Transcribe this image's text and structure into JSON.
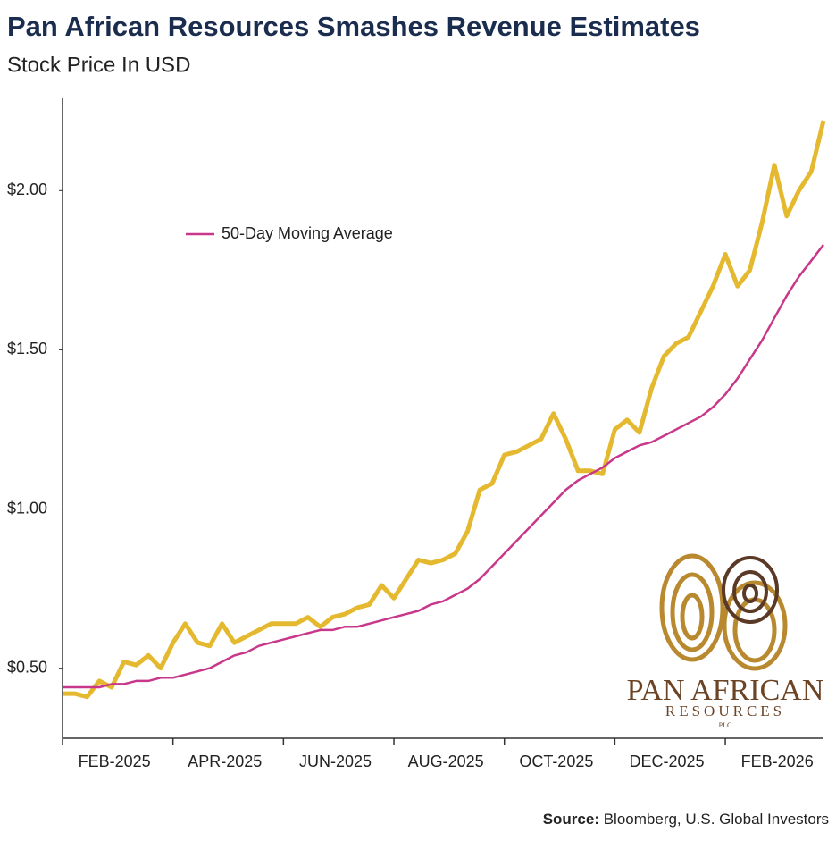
{
  "chart_data": {
    "type": "line",
    "title": "Pan African Resources Smashes Revenue Estimates",
    "subtitle": "Stock Price In USD",
    "series": [
      {
        "color": "#e5b92f",
        "values": [
          0.42,
          0.42,
          0.41,
          0.46,
          0.44,
          0.52,
          0.51,
          0.54,
          0.5,
          0.58,
          0.64,
          0.58,
          0.57,
          0.64,
          0.58,
          0.6,
          0.62,
          0.64,
          0.64,
          0.64,
          0.66,
          0.63,
          0.66,
          0.67,
          0.69,
          0.7,
          0.76,
          0.72,
          0.78,
          0.84,
          0.83,
          0.84,
          0.86,
          0.93,
          1.06,
          1.08,
          1.17,
          1.18,
          1.2,
          1.22,
          1.3,
          1.22,
          1.12,
          1.12,
          1.11,
          1.25,
          1.28,
          1.24,
          1.38,
          1.48,
          1.52,
          1.54,
          1.62,
          1.7,
          1.8,
          1.7,
          1.75,
          1.9,
          2.08,
          1.92,
          2.0,
          2.06,
          2.22
        ]
      },
      {
        "name": "50-Day Moving Average",
        "color": "#c8378a",
        "values": [
          0.44,
          0.44,
          0.44,
          0.44,
          0.45,
          0.45,
          0.46,
          0.46,
          0.47,
          0.47,
          0.48,
          0.49,
          0.5,
          0.52,
          0.54,
          0.55,
          0.57,
          0.58,
          0.59,
          0.6,
          0.61,
          0.62,
          0.62,
          0.63,
          0.63,
          0.64,
          0.65,
          0.66,
          0.67,
          0.68,
          0.7,
          0.71,
          0.73,
          0.75,
          0.78,
          0.82,
          0.86,
          0.9,
          0.94,
          0.98,
          1.02,
          1.06,
          1.09,
          1.11,
          1.13,
          1.16,
          1.18,
          1.2,
          1.21,
          1.23,
          1.25,
          1.27,
          1.29,
          1.32,
          1.36,
          1.41,
          1.47,
          1.53,
          1.6,
          1.67,
          1.73,
          1.78,
          1.83
        ]
      }
    ],
    "xlim": [
      0,
      62
    ],
    "xticks": [
      {
        "value": 0,
        "label": "FEB-2025"
      },
      {
        "value": 9,
        "label": "APR-2025"
      },
      {
        "value": 18,
        "label": "JUN-2025"
      },
      {
        "value": 27,
        "label": "AUG-2025"
      },
      {
        "value": 36,
        "label": "OCT-2025"
      },
      {
        "value": 45,
        "label": "DEC-2025"
      },
      {
        "value": 54,
        "label": "FEB-2026"
      }
    ],
    "ylim": [
      0.28,
      2.29
    ],
    "yticks": [
      {
        "value": 0.5,
        "label": "$0.50"
      },
      {
        "value": 1.0,
        "label": "$1.00"
      },
      {
        "value": 1.5,
        "label": "$1.50"
      },
      {
        "value": 2.0,
        "label": "$2.00"
      }
    ],
    "legend": "upper left",
    "logo": {
      "name": "PAN AFRICAN",
      "sub": "RESOURCES",
      "plc": "PLC"
    },
    "source": {
      "label": "Source:",
      "text": "Bloomberg, U.S. Global Investors"
    }
  }
}
